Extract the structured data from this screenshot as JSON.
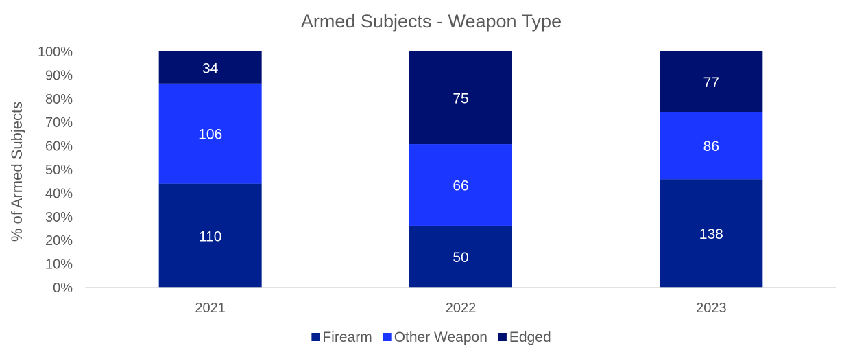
{
  "chart_data": {
    "type": "bar",
    "stacked": true,
    "normalized": true,
    "title": "Armed Subjects - Weapon Type",
    "xlabel": "",
    "ylabel": "% of Armed Subjects",
    "ylim": [
      0,
      100
    ],
    "yticks": [
      "0%",
      "10%",
      "20%",
      "30%",
      "40%",
      "50%",
      "60%",
      "70%",
      "80%",
      "90%",
      "100%"
    ],
    "categories": [
      "2021",
      "2022",
      "2023"
    ],
    "series": [
      {
        "name": "Firearm",
        "values": [
          110,
          50,
          138
        ],
        "color": "#002090"
      },
      {
        "name": "Other Weapon",
        "values": [
          106,
          66,
          86
        ],
        "color": "#1a36ff"
      },
      {
        "name": "Edged",
        "values": [
          34,
          75,
          77
        ],
        "color": "#001070"
      }
    ],
    "legend": "bottom",
    "grid": false,
    "label_color": "#ffffff",
    "axis_color": "#d9d9d9",
    "text_color": "#595959"
  }
}
